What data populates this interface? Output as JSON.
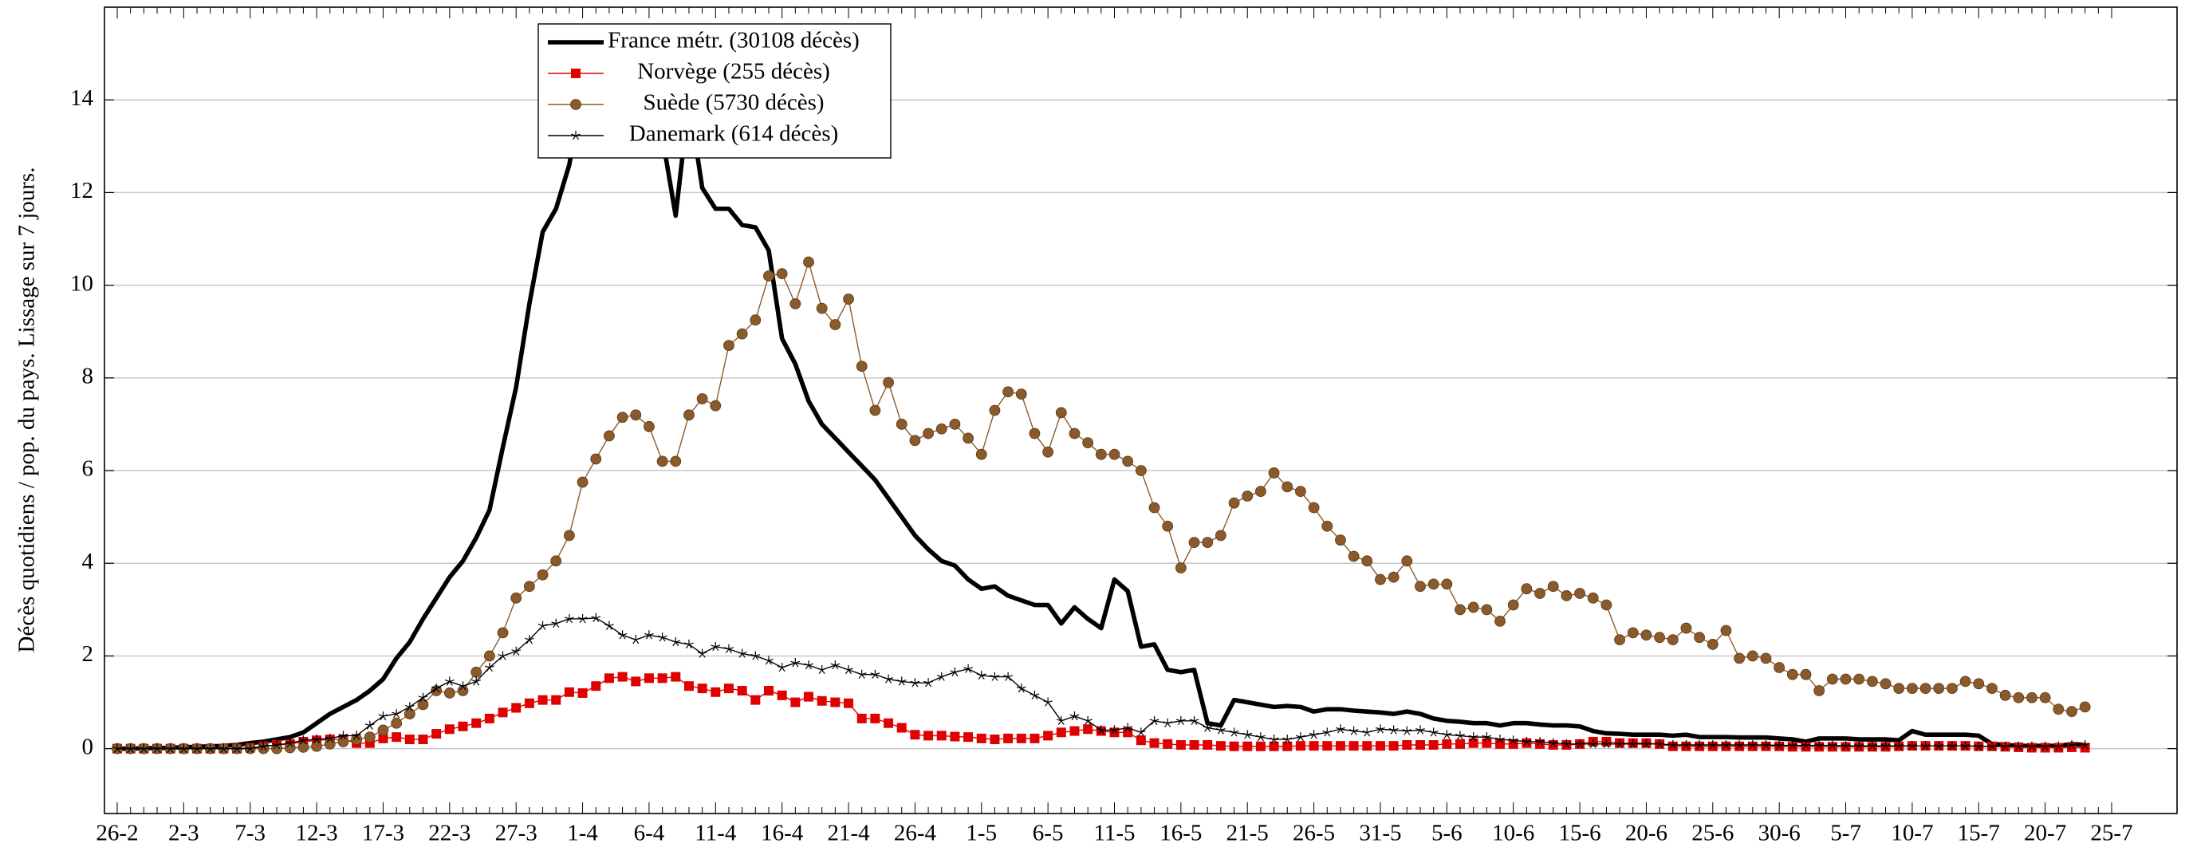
{
  "chart_data": {
    "type": "line",
    "y_label": "Décès quotidiens / pop. du pays. Lissage sur 7 jours.",
    "categories": [
      "26-2",
      null,
      null,
      null,
      null,
      "2-3",
      null,
      null,
      null,
      null,
      "7-3",
      null,
      null,
      null,
      null,
      "12-3",
      null,
      null,
      null,
      null,
      "17-3",
      null,
      null,
      null,
      null,
      "22-3",
      null,
      null,
      null,
      null,
      "27-3",
      null,
      null,
      null,
      null,
      "1-4",
      null,
      null,
      null,
      null,
      "6-4",
      null,
      null,
      null,
      null,
      "11-4",
      null,
      null,
      null,
      null,
      "16-4",
      null,
      null,
      null,
      null,
      "21-4",
      null,
      null,
      null,
      null,
      "26-4",
      null,
      null,
      null,
      null,
      "1-5",
      null,
      null,
      null,
      null,
      "6-5",
      null,
      null,
      null,
      null,
      "11-5",
      null,
      null,
      null,
      null,
      "16-5",
      null,
      null,
      null,
      null,
      "21-5",
      null,
      null,
      null,
      null,
      "26-5",
      null,
      null,
      null,
      null,
      "31-5",
      null,
      null,
      null,
      null,
      "5-6",
      null,
      null,
      null,
      null,
      "10-6",
      null,
      null,
      null,
      null,
      "15-6",
      null,
      null,
      null,
      null,
      "20-6",
      null,
      null,
      null,
      null,
      "25-6",
      null,
      null,
      null,
      null,
      "30-6",
      null,
      null,
      null,
      null,
      "5-7",
      null,
      null,
      null,
      null,
      "10-7",
      null,
      null,
      null,
      null,
      "15-7",
      null,
      null,
      null,
      null,
      "20-7",
      null,
      null,
      null,
      null,
      "25-7"
    ],
    "series": [
      {
        "name": "France métr. (30108 décès)",
        "color": "#000000",
        "marker": "none",
        "line_width": 4,
        "values": [
          0,
          0,
          0.01,
          0.01,
          0.02,
          0.03,
          0.04,
          0.05,
          0.06,
          0.08,
          0.12,
          0.15,
          0.2,
          0.25,
          0.35,
          0.55,
          0.75,
          0.9,
          1.05,
          1.25,
          1.5,
          1.95,
          2.3,
          2.8,
          3.25,
          3.7,
          4.05,
          4.55,
          5.15,
          6.5,
          7.8,
          9.6,
          11.15,
          11.65,
          12.6,
          14.2,
          15.3,
          15.6,
          15.3,
          14.6,
          13.4,
          13.2,
          11.5,
          14.0,
          12.1,
          11.65,
          11.65,
          11.3,
          11.25,
          10.75,
          8.85,
          8.3,
          7.5,
          7.0,
          6.7,
          6.4,
          6.1,
          5.8,
          5.4,
          5.0,
          4.6,
          4.3,
          4.05,
          3.95,
          3.65,
          3.45,
          3.5,
          3.3,
          3.2,
          3.1,
          3.1,
          2.7,
          3.05,
          2.8,
          2.6,
          3.65,
          3.4,
          2.2,
          2.25,
          1.7,
          1.65,
          1.7,
          0.55,
          0.5,
          1.05,
          1.0,
          0.95,
          0.9,
          0.92,
          0.9,
          0.8,
          0.85,
          0.85,
          0.82,
          0.8,
          0.78,
          0.75,
          0.8,
          0.75,
          0.65,
          0.6,
          0.58,
          0.55,
          0.55,
          0.5,
          0.55,
          0.55,
          0.52,
          0.5,
          0.5,
          0.48,
          0.38,
          0.33,
          0.32,
          0.3,
          0.3,
          0.3,
          0.28,
          0.3,
          0.25,
          0.25,
          0.25,
          0.24,
          0.24,
          0.24,
          0.22,
          0.2,
          0.15,
          0.22,
          0.22,
          0.22,
          0.2,
          0.2,
          0.2,
          0.18,
          0.38,
          0.3,
          0.3,
          0.3,
          0.3,
          0.28,
          0.1,
          0.08,
          0.06,
          0.06,
          0.06,
          0.06,
          0.1,
          0.08,
          null,
          null
        ]
      },
      {
        "name": "Norvège (255 décès)",
        "color": "#e00000",
        "marker": "square",
        "line_width": 1,
        "values": [
          0,
          0,
          0,
          0,
          0,
          0,
          0,
          0,
          0,
          0,
          0.02,
          0.05,
          0.08,
          0.1,
          0.15,
          0.18,
          0.2,
          0.2,
          0.12,
          0.12,
          0.22,
          0.25,
          0.2,
          0.2,
          0.32,
          0.42,
          0.48,
          0.55,
          0.65,
          0.78,
          0.88,
          0.98,
          1.05,
          1.05,
          1.22,
          1.2,
          1.35,
          1.52,
          1.55,
          1.45,
          1.52,
          1.52,
          1.55,
          1.35,
          1.3,
          1.22,
          1.3,
          1.25,
          1.05,
          1.25,
          1.15,
          1.0,
          1.12,
          1.03,
          1.0,
          0.98,
          0.65,
          0.65,
          0.55,
          0.45,
          0.3,
          0.28,
          0.28,
          0.26,
          0.25,
          0.22,
          0.2,
          0.22,
          0.22,
          0.22,
          0.28,
          0.35,
          0.38,
          0.42,
          0.38,
          0.35,
          0.35,
          0.18,
          0.12,
          0.1,
          0.08,
          0.08,
          0.08,
          0.06,
          0.05,
          0.05,
          0.05,
          0.05,
          0.05,
          0.06,
          0.06,
          0.06,
          0.06,
          0.06,
          0.06,
          0.06,
          0.06,
          0.08,
          0.08,
          0.08,
          0.1,
          0.1,
          0.12,
          0.12,
          0.1,
          0.1,
          0.12,
          0.1,
          0.08,
          0.08,
          0.1,
          0.15,
          0.15,
          0.12,
          0.12,
          0.12,
          0.1,
          0.05,
          0.05,
          0.05,
          0.05,
          0.05,
          0.05,
          0.05,
          0.05,
          0.05,
          0.04,
          0.04,
          0.04,
          0.04,
          0.04,
          0.04,
          0.04,
          0.04,
          0.05,
          0.06,
          0.06,
          0.06,
          0.06,
          0.06,
          0.05,
          0.05,
          0.04,
          0.03,
          0.02,
          0.02,
          0.02,
          0.03,
          0.02,
          null,
          null
        ]
      },
      {
        "name": "Suède (5730 décès)",
        "color": "#8b5a2b",
        "marker": "circle",
        "line_width": 1,
        "values": [
          0,
          0,
          0,
          0,
          0,
          0,
          0,
          0,
          0,
          0,
          0,
          0,
          0,
          0.02,
          0.03,
          0.05,
          0.1,
          0.15,
          0.2,
          0.25,
          0.4,
          0.55,
          0.75,
          0.95,
          1.25,
          1.2,
          1.25,
          1.65,
          2.0,
          2.5,
          3.25,
          3.5,
          3.75,
          4.05,
          4.6,
          5.75,
          6.25,
          6.75,
          7.15,
          7.2,
          6.95,
          6.2,
          6.2,
          7.2,
          7.55,
          7.4,
          8.7,
          8.95,
          9.25,
          10.2,
          10.25,
          9.6,
          10.5,
          9.5,
          9.15,
          9.7,
          8.25,
          7.3,
          7.9,
          7.0,
          6.65,
          6.8,
          6.9,
          7.0,
          6.7,
          6.35,
          7.3,
          7.7,
          7.65,
          6.8,
          6.4,
          7.25,
          6.8,
          6.6,
          6.35,
          6.35,
          6.2,
          6.0,
          5.2,
          4.8,
          3.9,
          4.45,
          4.45,
          4.6,
          5.3,
          5.45,
          5.55,
          5.95,
          5.65,
          5.55,
          5.2,
          4.8,
          4.5,
          4.15,
          4.05,
          3.65,
          3.7,
          4.05,
          3.5,
          3.55,
          3.55,
          3.0,
          3.05,
          3.0,
          2.75,
          3.1,
          3.45,
          3.35,
          3.5,
          3.3,
          3.35,
          3.25,
          3.1,
          2.35,
          2.5,
          2.45,
          2.4,
          2.35,
          2.6,
          2.4,
          2.25,
          2.55,
          1.95,
          2.0,
          1.95,
          1.75,
          1.6,
          1.6,
          1.25,
          1.5,
          1.5,
          1.5,
          1.45,
          1.4,
          1.3,
          1.3,
          1.3,
          1.3,
          1.3,
          1.45,
          1.4,
          1.3,
          1.15,
          1.1,
          1.1,
          1.1,
          0.85,
          0.8,
          0.9,
          null,
          null
        ]
      },
      {
        "name": "Danemark (614 décès)",
        "color": "#000000",
        "marker": "star",
        "line_width": 1,
        "values": [
          0,
          0,
          0,
          0,
          0,
          0,
          0,
          0,
          0,
          0,
          0,
          0.05,
          0.08,
          0.12,
          0.18,
          0.2,
          0.22,
          0.28,
          0.28,
          0.5,
          0.7,
          0.75,
          0.9,
          1.1,
          1.3,
          1.45,
          1.35,
          1.45,
          1.75,
          2.0,
          2.1,
          2.35,
          2.65,
          2.7,
          2.8,
          2.8,
          2.82,
          2.65,
          2.45,
          2.35,
          2.45,
          2.4,
          2.3,
          2.25,
          2.05,
          2.2,
          2.15,
          2.05,
          2.0,
          1.9,
          1.75,
          1.85,
          1.8,
          1.7,
          1.8,
          1.7,
          1.6,
          1.6,
          1.5,
          1.45,
          1.42,
          1.42,
          1.55,
          1.65,
          1.72,
          1.58,
          1.55,
          1.55,
          1.3,
          1.15,
          1.0,
          0.6,
          0.7,
          0.6,
          0.4,
          0.4,
          0.45,
          0.35,
          0.6,
          0.55,
          0.6,
          0.6,
          0.45,
          0.4,
          0.35,
          0.3,
          0.25,
          0.2,
          0.2,
          0.25,
          0.3,
          0.35,
          0.42,
          0.38,
          0.35,
          0.42,
          0.4,
          0.38,
          0.4,
          0.35,
          0.3,
          0.28,
          0.25,
          0.25,
          0.2,
          0.18,
          0.15,
          0.15,
          0.12,
          0.1,
          0.1,
          0.1,
          0.1,
          0.1,
          0.1,
          0.1,
          0.1,
          0.08,
          0.08,
          0.08,
          0.08,
          0.08,
          0.08,
          0.08,
          0.08,
          0.07,
          0.07,
          0.07,
          0.07,
          0.07,
          0.06,
          0.06,
          0.06,
          0.06,
          0.06,
          0.06,
          0.06,
          0.06,
          0.06,
          0.06,
          0.05,
          0.05,
          0.05,
          0.05,
          0.05,
          0.05,
          0.05,
          0.08,
          0.08,
          null,
          null
        ]
      }
    ],
    "ylim": [
      -1.4,
      16
    ],
    "yticks": [
      0,
      2,
      4,
      6,
      8,
      10,
      12,
      14
    ],
    "grid": true,
    "legend_position": "top"
  }
}
